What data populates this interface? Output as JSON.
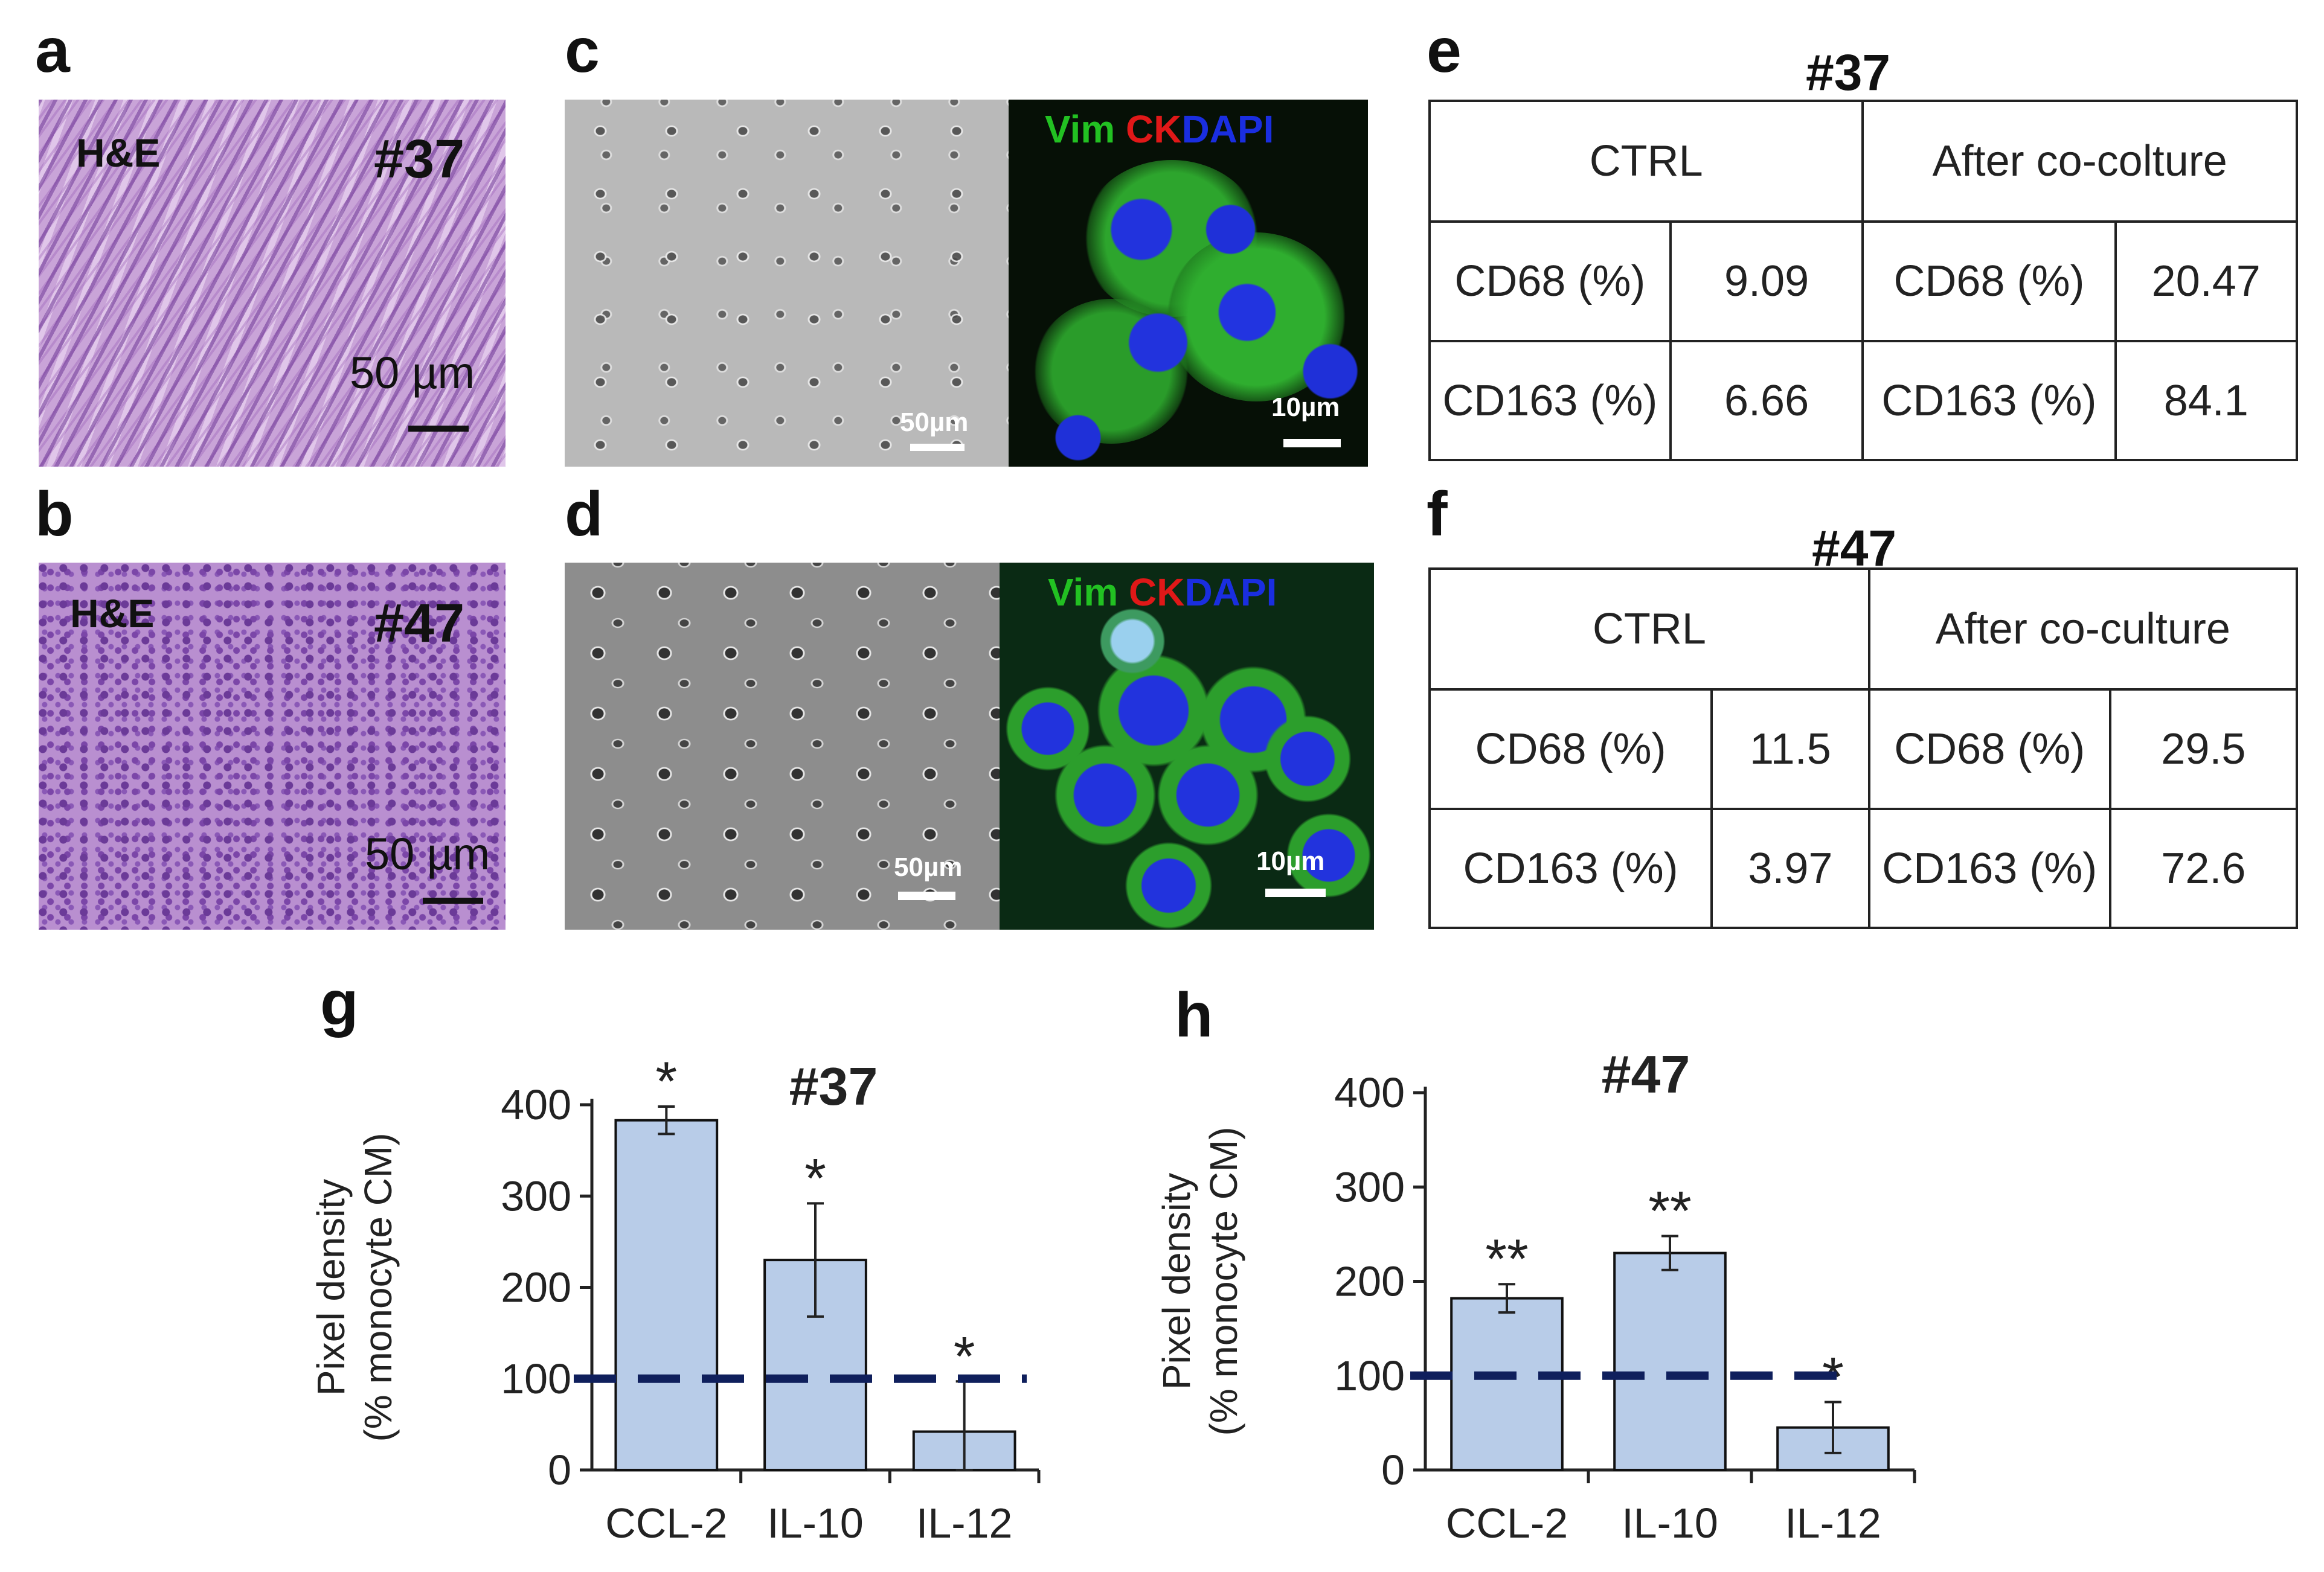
{
  "panel_labels": {
    "a": "a",
    "b": "b",
    "c": "c",
    "d": "d",
    "e": "e",
    "f": "f",
    "g": "g",
    "h": "h"
  },
  "panel_a": {
    "stain": "H&E",
    "sample": "#37",
    "scale": "50 µm"
  },
  "panel_b": {
    "stain": "H&E",
    "sample": "#47",
    "scale": "50 µm"
  },
  "panel_c": {
    "phase_scale": "50µm",
    "fluo_scale": "10µm",
    "labels": {
      "vim": "Vim",
      "ck": "CK",
      "dapi": "DAPI"
    }
  },
  "panel_d": {
    "phase_scale": "50µm",
    "fluo_scale": "10µm",
    "labels": {
      "vim": "Vim",
      "ck": "CK",
      "dapi": "DAPI"
    }
  },
  "colors": {
    "vim": "#22c122",
    "ck": "#e01818",
    "dapi": "#1a2ee0",
    "bar_fill": "#b8cce8",
    "bar_stroke": "#111111",
    "dashed_line": "#0f1f5c"
  },
  "table_e": {
    "title": "#37",
    "headers": [
      "CTRL",
      "After co-colture"
    ],
    "rows": [
      {
        "ctrl_label": "CD68 (%)",
        "ctrl_value": "9.09",
        "after_label": "CD68 (%)",
        "after_value": "20.47"
      },
      {
        "ctrl_label": "CD163 (%)",
        "ctrl_value": "6.66",
        "after_label": "CD163 (%)",
        "after_value": "84.1"
      }
    ]
  },
  "table_f": {
    "title": "#47",
    "headers": [
      "CTRL",
      "After co-culture"
    ],
    "rows": [
      {
        "ctrl_label": "CD68 (%)",
        "ctrl_value": "11.5",
        "after_label": "CD68 (%)",
        "after_value": "29.5"
      },
      {
        "ctrl_label": "CD163 (%)",
        "ctrl_value": "3.97",
        "after_label": "CD163 (%)",
        "after_value": "72.6"
      }
    ]
  },
  "chart_data": [
    {
      "type": "bar",
      "title": "#37",
      "ylabel": "Pixel density",
      "ylabel2": "(% monocyte CM)",
      "categories": [
        "CCL-2",
        "IL-10",
        "IL-12"
      ],
      "values": [
        383,
        230,
        42
      ],
      "error": [
        15,
        62,
        55
      ],
      "significance": [
        "*",
        "*",
        "*"
      ],
      "reference_line": 100,
      "ylim": [
        0,
        400
      ],
      "yticks": [
        "0",
        "100",
        "200",
        "300",
        "400"
      ]
    },
    {
      "type": "bar",
      "title": "#47",
      "ylabel": "Pixel density",
      "ylabel2": "(% monocyte CM)",
      "categories": [
        "CCL-2",
        "IL-10",
        "IL-12"
      ],
      "values": [
        182,
        230,
        45
      ],
      "error": [
        15,
        18,
        27
      ],
      "significance": [
        "**",
        "**",
        "*"
      ],
      "reference_line": 100,
      "ylim": [
        0,
        400
      ],
      "yticks": [
        "0",
        "100",
        "200",
        "300",
        "400"
      ]
    }
  ]
}
